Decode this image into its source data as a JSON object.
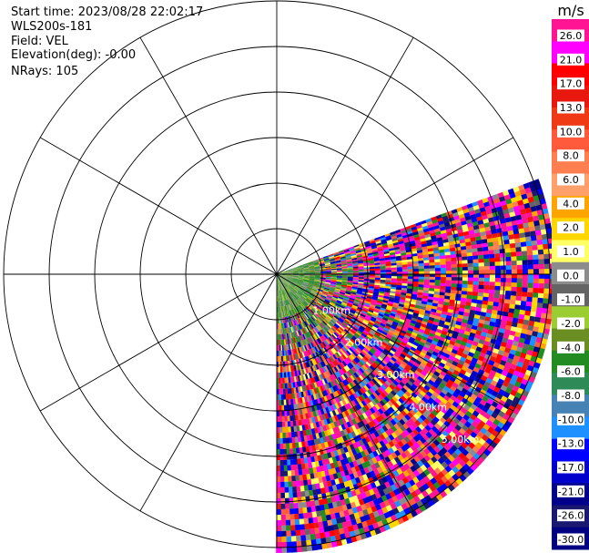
{
  "info": {
    "start_time": "Start time: 2023/08/28 22:02:17",
    "instrument": "WLS200s-181",
    "field": "Field: VEL",
    "elevation": "Elevation(deg): -0.00",
    "nrays": "NRays: 105"
  },
  "chart_data": {
    "type": "polar_ppi",
    "title": "",
    "range_rings_km": [
      1,
      2,
      3,
      4,
      5,
      6
    ],
    "range_ring_labels": [
      "1.00km",
      "2.00km",
      "3.00km",
      "4.00km",
      "5.00km"
    ],
    "spokes_deg": [
      0,
      30,
      60,
      90,
      120,
      150,
      180,
      210,
      240,
      270,
      300,
      330
    ],
    "sector_start_azimuth_deg": 70,
    "sector_end_azimuth_deg": 180,
    "colorbar": {
      "unit": "m/s",
      "tick_labels": [
        "26.0",
        "21.0",
        "17.0",
        "13.0",
        "10.0",
        "8.0",
        "6.0",
        "4.0",
        "2.0",
        "1.0",
        "0.0",
        "-1.0",
        "-2.0",
        "-4.0",
        "-6.0",
        "-8.0",
        "-10.0",
        "-13.0",
        "-17.0",
        "-21.0",
        "-26.0",
        "-30.0"
      ],
      "colors": [
        "#ff1493",
        "#ff00ff",
        "#ff0000",
        "#e8180f",
        "#f03a16",
        "#ff5a3c",
        "#ff7f50",
        "#ff9f6a",
        "#ffa500",
        "#ffd700",
        "#ffff66",
        "#8c8c8c",
        "#646464",
        "#9acd32",
        "#6b8e23",
        "#228b22",
        "#2e8b57",
        "#4682b4",
        "#1e90ff",
        "#0000ff",
        "#0000cd",
        "#00008b",
        "#191970",
        "#000080"
      ]
    }
  }
}
